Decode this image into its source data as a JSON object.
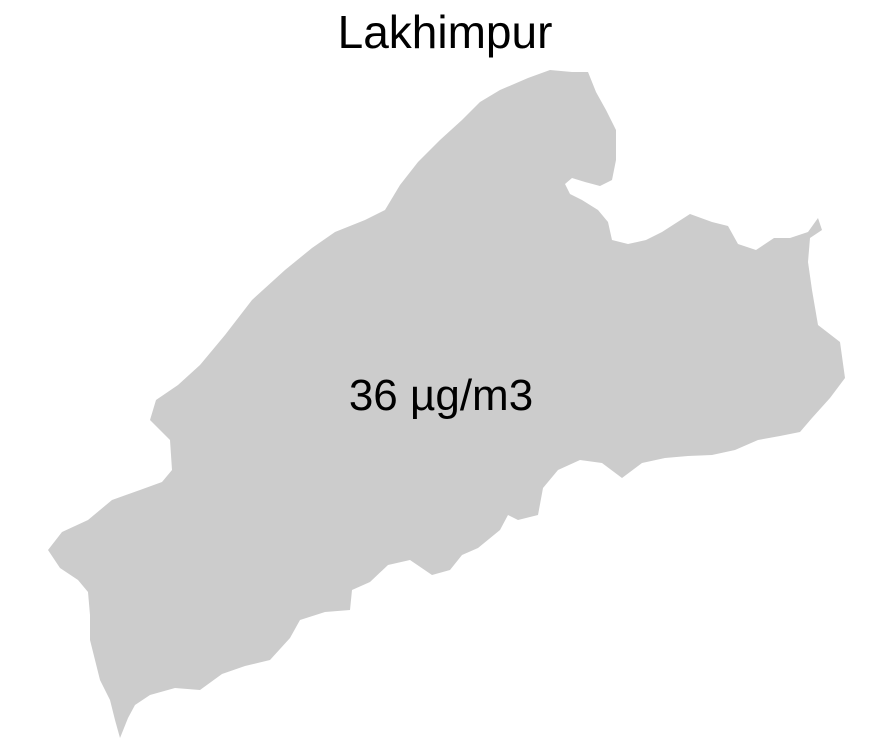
{
  "map": {
    "title": "Lakhimpur",
    "region_name": "Lakhimpur",
    "value_label": "36 µg/m3",
    "value": 36,
    "unit": "µg/m3",
    "fill_color": "#cccccc",
    "background_color": "#ffffff"
  }
}
